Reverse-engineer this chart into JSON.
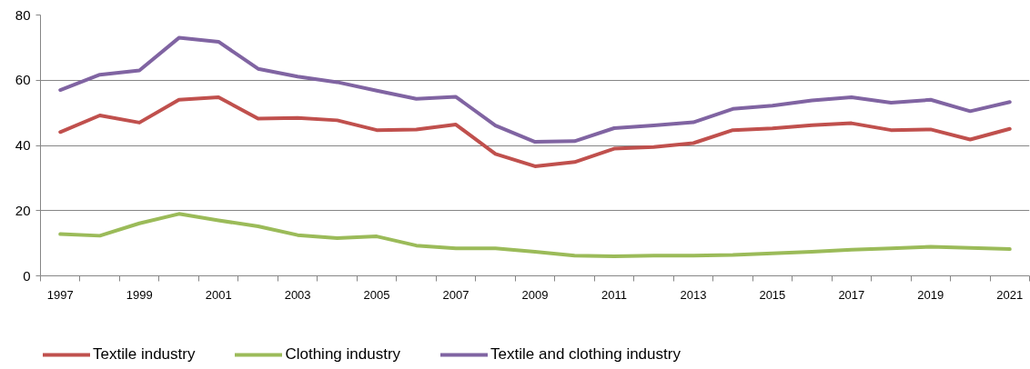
{
  "chart_data": {
    "type": "line",
    "categories": [
      "1997",
      null,
      "1999",
      null,
      "2001",
      null,
      "2003",
      null,
      "2005",
      null,
      "2007",
      null,
      "2009",
      null,
      "2011",
      null,
      "2013",
      null,
      "2015",
      null,
      "2017",
      null,
      "2019",
      null,
      "2021"
    ],
    "ylim": [
      0,
      80
    ],
    "yticks": [
      0,
      20,
      40,
      60,
      80
    ],
    "grid": "y",
    "legend": "bottom",
    "line_style": "solid",
    "series": [
      {
        "name": "Textile industry",
        "color": "#c0504d",
        "values": [
          44.1,
          49.2,
          47.0,
          54.0,
          54.8,
          48.2,
          48.4,
          47.7,
          44.7,
          44.9,
          46.4,
          37.4,
          33.6,
          34.9,
          39.0,
          39.5,
          40.7,
          44.7,
          45.2,
          46.2,
          46.8,
          44.7,
          44.9,
          41.8,
          45.1
        ]
      },
      {
        "name": "Clothing industry",
        "color": "#9bbb59",
        "values": [
          12.8,
          12.3,
          16.1,
          19.0,
          17.0,
          15.2,
          12.5,
          11.6,
          12.1,
          9.3,
          8.4,
          8.4,
          7.4,
          6.2,
          6.0,
          6.2,
          6.2,
          6.4,
          6.9,
          7.4,
          8.0,
          8.4,
          8.9,
          8.6,
          8.2
        ]
      },
      {
        "name": "Textile and clothing industry",
        "color": "#8064a2",
        "values": [
          57.0,
          61.7,
          63.0,
          73.0,
          71.8,
          63.5,
          61.1,
          59.4,
          56.8,
          54.3,
          54.9,
          46.1,
          41.1,
          41.3,
          45.3,
          46.1,
          47.1,
          51.2,
          52.2,
          53.8,
          54.8,
          53.1,
          54.0,
          50.5,
          53.3
        ]
      }
    ]
  }
}
